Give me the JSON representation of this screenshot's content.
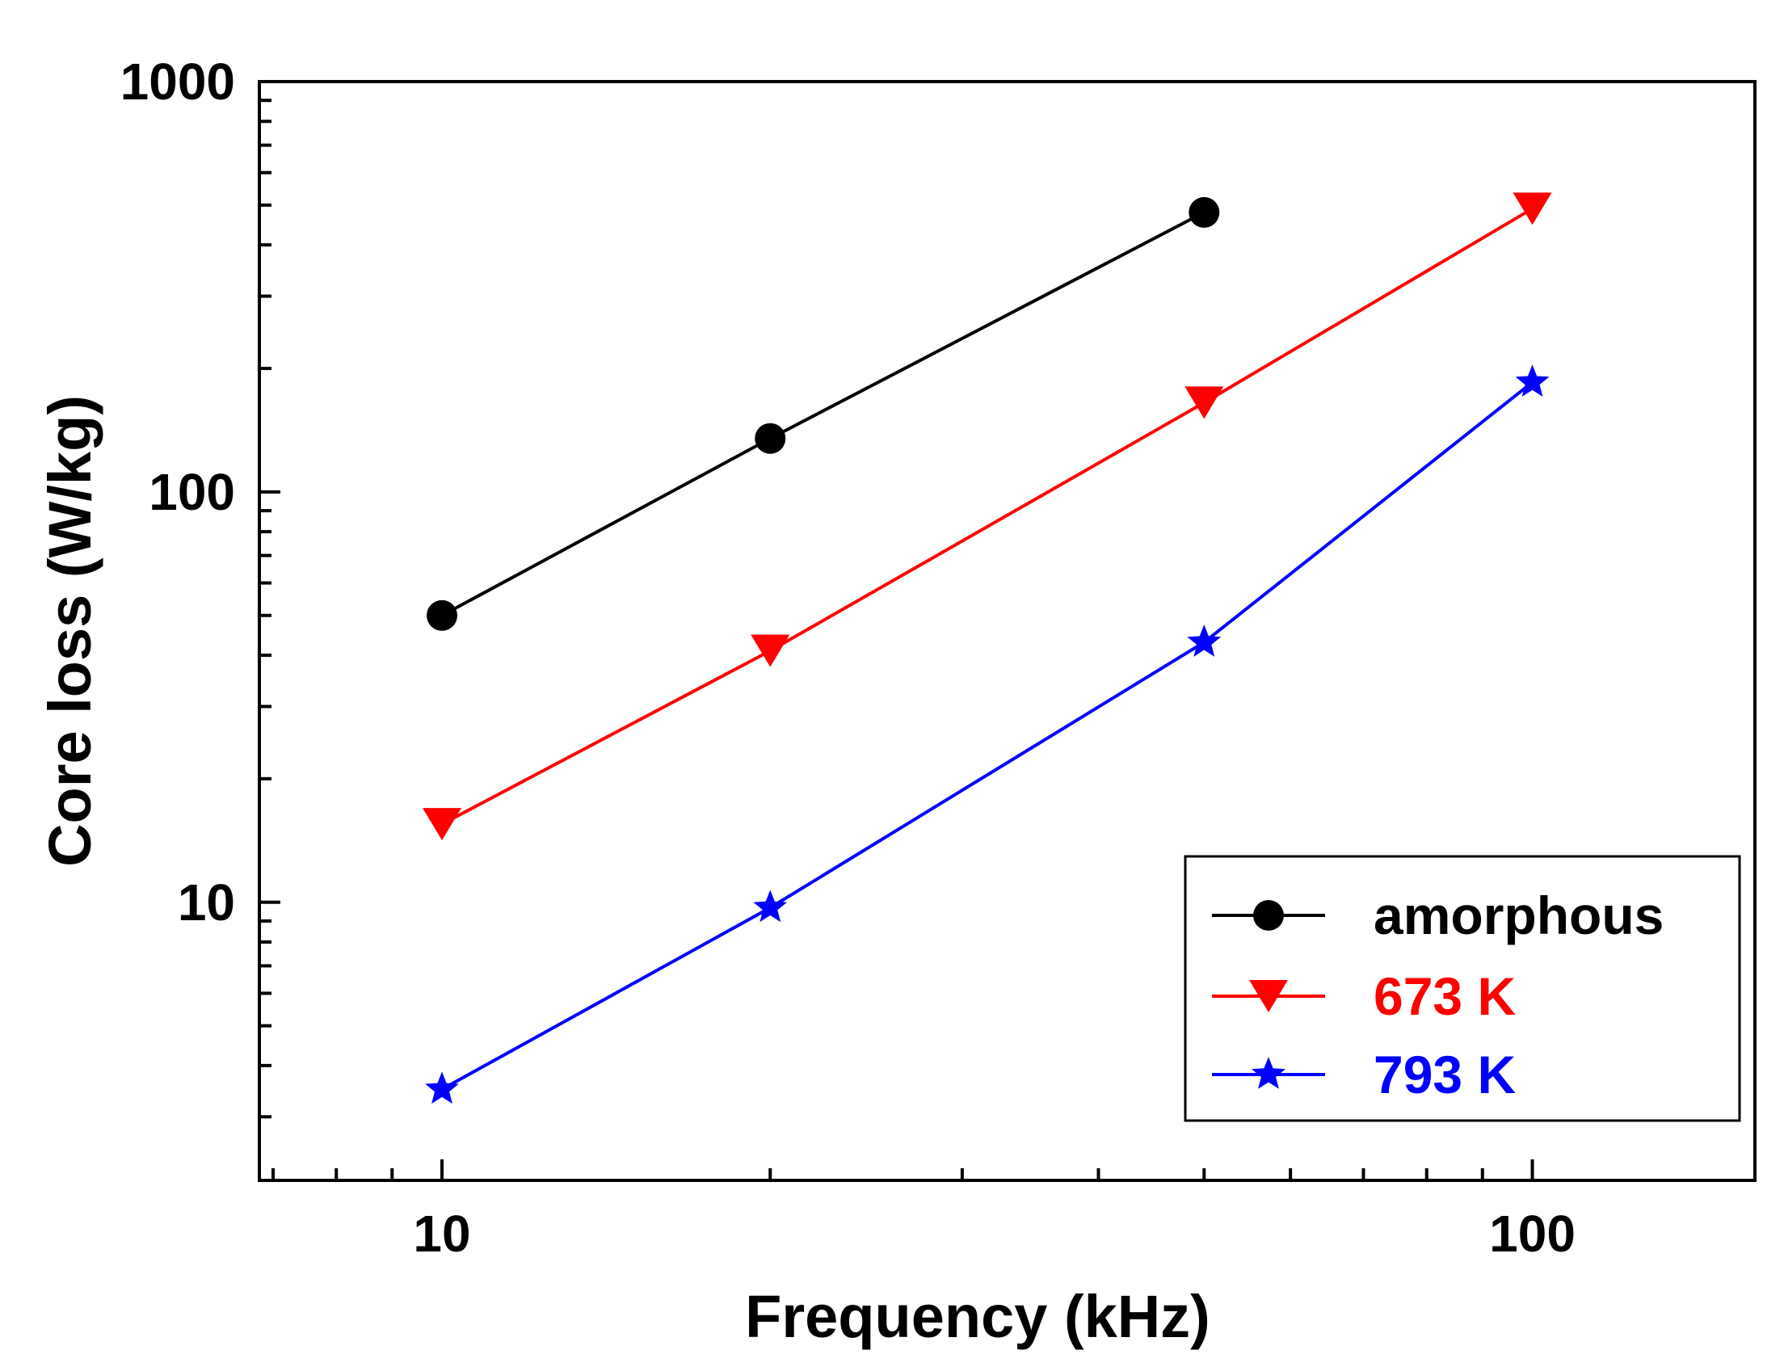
{
  "chart_data": {
    "type": "line",
    "xscale": "log",
    "yscale": "log",
    "xlabel": "Frequency (kHz)",
    "ylabel": "Core loss (W/kg)",
    "xlim": [
      6.8,
      160
    ],
    "ylim": [
      2.1,
      1000
    ],
    "xticks": [
      {
        "value": 10,
        "label": "10"
      },
      {
        "value": 100,
        "label": "100"
      }
    ],
    "yticks": [
      {
        "value": 10,
        "label": "10"
      },
      {
        "value": 100,
        "label": "100"
      },
      {
        "value": 1000,
        "label": "1000"
      }
    ],
    "grid": false,
    "legend_position": "bottom-right",
    "series": [
      {
        "name": "amorphous",
        "color": "#000000",
        "marker": "circle",
        "x": [
          10,
          20,
          50
        ],
        "y": [
          50,
          135,
          480
        ]
      },
      {
        "name": "673 K",
        "color": "#ff0000",
        "marker": "triangle-down",
        "x": [
          10,
          20,
          50,
          100
        ],
        "y": [
          15.5,
          41,
          165,
          490
        ]
      },
      {
        "name": "793 K",
        "color": "#0000ff",
        "marker": "star",
        "x": [
          10,
          20,
          50,
          100
        ],
        "y": [
          3.5,
          9.7,
          43,
          185
        ]
      }
    ]
  }
}
